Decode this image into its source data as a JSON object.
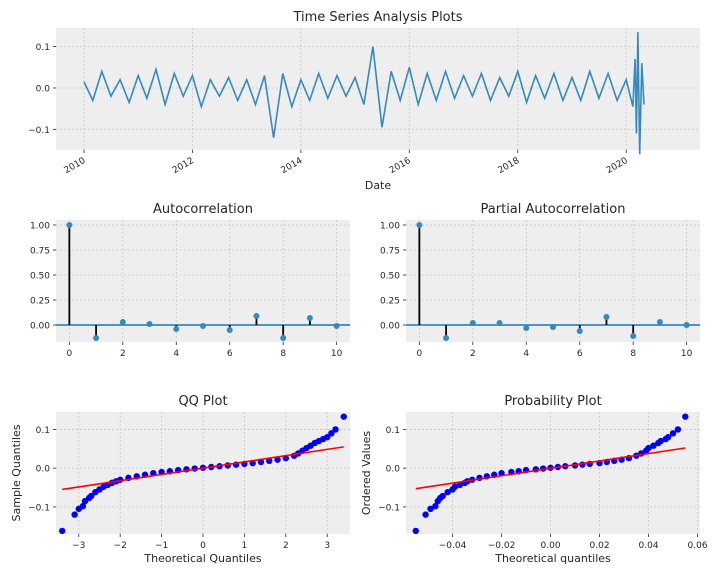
{
  "colors": {
    "panel_bg": "#eeeeee",
    "grid": "#c8c8c8",
    "series": "#348abd",
    "stem": "#000000",
    "qq_points": "#0000ff",
    "ref_line": "#ff0000",
    "text": "#262626"
  },
  "chart_data": [
    {
      "type": "line",
      "title": "Time Series Analysis Plots",
      "xlabel": "Date",
      "ylabel": "",
      "x_range": [
        "2010-01-01",
        "2020-04-30"
      ],
      "ylim": [
        -0.15,
        0.145
      ],
      "x_ticks": [
        "2010",
        "2012",
        "2014",
        "2016",
        "2018",
        "2020"
      ],
      "y_ticks": [
        -0.1,
        0.0,
        0.1
      ],
      "y_tick_labels": [
        "−0.1",
        "0.0",
        "0.1"
      ],
      "grid": true,
      "series": [
        {
          "values_note_free": true,
          "x": [
            "2010-01-01",
            "2010-03-01",
            "2010-05-01",
            "2010-07-01",
            "2010-09-01",
            "2010-11-01",
            "2011-01-01",
            "2011-03-01",
            "2011-05-01",
            "2011-07-01",
            "2011-09-01",
            "2011-11-01",
            "2012-01-01",
            "2012-03-01",
            "2012-05-01",
            "2012-07-01",
            "2012-09-01",
            "2012-11-01",
            "2013-01-01",
            "2013-03-01",
            "2013-05-01",
            "2013-07-01",
            "2013-09-01",
            "2013-11-01",
            "2014-01-01",
            "2014-03-01",
            "2014-05-01",
            "2014-07-01",
            "2014-09-01",
            "2014-11-01",
            "2015-01-01",
            "2015-03-01",
            "2015-05-01",
            "2015-07-01",
            "2015-09-01",
            "2015-11-01",
            "2016-01-01",
            "2016-03-01",
            "2016-05-01",
            "2016-07-01",
            "2016-09-01",
            "2016-11-01",
            "2017-01-01",
            "2017-03-01",
            "2017-05-01",
            "2017-07-01",
            "2017-09-01",
            "2017-11-01",
            "2018-01-01",
            "2018-03-01",
            "2018-05-01",
            "2018-07-01",
            "2018-09-01",
            "2018-11-01",
            "2019-01-01",
            "2019-03-01",
            "2019-05-01",
            "2019-07-01",
            "2019-09-01",
            "2019-11-01",
            "2020-01-01",
            "2020-02-15",
            "2020-03-01",
            "2020-03-10",
            "2020-03-20",
            "2020-04-01",
            "2020-04-15",
            "2020-04-30"
          ],
          "y": [
            0.015,
            -0.03,
            0.04,
            -0.02,
            0.02,
            -0.035,
            0.03,
            -0.025,
            0.045,
            -0.04,
            0.035,
            -0.02,
            0.03,
            -0.045,
            0.02,
            -0.02,
            0.025,
            -0.03,
            0.02,
            -0.04,
            0.03,
            -0.12,
            0.035,
            -0.045,
            0.02,
            -0.03,
            0.035,
            -0.025,
            0.03,
            -0.02,
            0.025,
            -0.04,
            0.1,
            -0.095,
            0.04,
            -0.03,
            0.05,
            -0.04,
            0.035,
            -0.03,
            0.04,
            -0.025,
            0.03,
            -0.02,
            0.035,
            -0.03,
            0.025,
            -0.02,
            0.04,
            -0.035,
            0.03,
            -0.025,
            0.035,
            -0.03,
            0.025,
            -0.03,
            0.04,
            -0.025,
            0.035,
            -0.03,
            0.02,
            -0.045,
            0.07,
            -0.11,
            0.135,
            -0.16,
            0.06,
            -0.04
          ]
        }
      ]
    },
    {
      "type": "scatter",
      "title": "Autocorrelation",
      "xlim": [
        -0.5,
        10.5
      ],
      "ylim": [
        -0.17,
        1.05
      ],
      "x_ticks": [
        0,
        2,
        4,
        6,
        8,
        10
      ],
      "y_ticks": [
        0.0,
        0.25,
        0.5,
        0.75,
        1.0
      ],
      "y_tick_labels": [
        "0.00",
        "0.25",
        "0.50",
        "0.75",
        "1.00"
      ],
      "grid": true,
      "x": [
        0,
        1,
        2,
        3,
        4,
        5,
        6,
        7,
        8,
        9,
        10
      ],
      "y": [
        1.0,
        -0.13,
        0.03,
        0.01,
        -0.04,
        -0.01,
        -0.05,
        0.09,
        -0.13,
        0.07,
        -0.01
      ]
    },
    {
      "type": "scatter",
      "title": "Partial Autocorrelation",
      "xlim": [
        -0.5,
        10.5
      ],
      "ylim": [
        -0.17,
        1.05
      ],
      "x_ticks": [
        0,
        2,
        4,
        6,
        8,
        10
      ],
      "y_ticks": [
        0.0,
        0.25,
        0.5,
        0.75,
        1.0
      ],
      "y_tick_labels": [
        "0.00",
        "0.25",
        "0.50",
        "0.75",
        "1.00"
      ],
      "grid": true,
      "x": [
        0,
        1,
        2,
        3,
        4,
        5,
        6,
        7,
        8,
        9,
        10
      ],
      "y": [
        1.0,
        -0.13,
        0.02,
        0.02,
        -0.03,
        -0.02,
        -0.06,
        0.08,
        -0.11,
        0.03,
        0.0
      ]
    },
    {
      "type": "scatter",
      "title": "QQ Plot",
      "xlabel": "Theoretical Quantiles",
      "ylabel": "Sample Quantiles",
      "xlim": [
        -3.55,
        3.55
      ],
      "ylim": [
        -0.17,
        0.145
      ],
      "x_ticks": [
        -3,
        -2,
        -1,
        0,
        1,
        2,
        3
      ],
      "x_tick_labels": [
        "−3",
        "−2",
        "−1",
        "0",
        "1",
        "2",
        "3"
      ],
      "y_ticks": [
        -0.1,
        0.0,
        0.1
      ],
      "y_tick_labels": [
        "−0.1",
        "0.0",
        "0.1"
      ],
      "grid": true,
      "reference_line": {
        "x": [
          -3.4,
          3.4
        ],
        "y": [
          -0.055,
          0.055
        ]
      },
      "x": [
        -3.4,
        -3.1,
        -3.0,
        -2.9,
        -2.85,
        -2.75,
        -2.7,
        -2.6,
        -2.5,
        -2.4,
        -2.3,
        -2.2,
        -2.1,
        -2.0,
        -1.8,
        -1.6,
        -1.4,
        -1.2,
        -1.0,
        -0.8,
        -0.6,
        -0.4,
        -0.2,
        0.0,
        0.2,
        0.4,
        0.6,
        0.8,
        1.0,
        1.2,
        1.4,
        1.6,
        1.8,
        2.0,
        2.2,
        2.3,
        2.4,
        2.5,
        2.6,
        2.7,
        2.8,
        2.9,
        3.0,
        3.1,
        3.2,
        3.4
      ],
      "y": [
        -0.162,
        -0.12,
        -0.105,
        -0.098,
        -0.085,
        -0.077,
        -0.072,
        -0.062,
        -0.055,
        -0.048,
        -0.043,
        -0.038,
        -0.034,
        -0.03,
        -0.025,
        -0.021,
        -0.017,
        -0.013,
        -0.01,
        -0.008,
        -0.005,
        -0.003,
        -0.001,
        0.001,
        0.003,
        0.005,
        0.007,
        0.009,
        0.011,
        0.013,
        0.016,
        0.019,
        0.022,
        0.026,
        0.032,
        0.038,
        0.045,
        0.052,
        0.058,
        0.065,
        0.07,
        0.075,
        0.08,
        0.09,
        0.1,
        0.133
      ]
    },
    {
      "type": "scatter",
      "title": "Probability Plot",
      "xlabel": "Theoretical quantiles",
      "ylabel": "Ordered Values",
      "xlim": [
        -0.059,
        0.061
      ],
      "ylim": [
        -0.17,
        0.145
      ],
      "x_ticks": [
        -0.04,
        -0.02,
        0.0,
        0.02,
        0.04,
        0.06
      ],
      "x_tick_labels": [
        "−0.04",
        "−0.02",
        "0.00",
        "0.02",
        "0.04",
        "0.06"
      ],
      "y_ticks": [
        -0.1,
        0.0,
        0.1
      ],
      "y_tick_labels": [
        "−0.1",
        "0.0",
        "0.1"
      ],
      "grid": true,
      "reference_line": {
        "x": [
          -0.055,
          0.055
        ],
        "y": [
          -0.053,
          0.052
        ]
      },
      "x": [
        -0.055,
        -0.051,
        -0.049,
        -0.047,
        -0.046,
        -0.045,
        -0.044,
        -0.042,
        -0.04,
        -0.039,
        -0.037,
        -0.035,
        -0.034,
        -0.032,
        -0.029,
        -0.026,
        -0.023,
        -0.02,
        -0.016,
        -0.013,
        -0.01,
        -0.006,
        -0.003,
        0.0,
        0.003,
        0.006,
        0.01,
        0.013,
        0.016,
        0.02,
        0.023,
        0.026,
        0.029,
        0.032,
        0.035,
        0.037,
        0.039,
        0.04,
        0.042,
        0.044,
        0.045,
        0.047,
        0.048,
        0.05,
        0.052,
        0.055
      ],
      "y": [
        -0.162,
        -0.12,
        -0.105,
        -0.098,
        -0.085,
        -0.077,
        -0.072,
        -0.062,
        -0.055,
        -0.048,
        -0.043,
        -0.038,
        -0.034,
        -0.03,
        -0.025,
        -0.021,
        -0.017,
        -0.013,
        -0.01,
        -0.008,
        -0.005,
        -0.003,
        -0.001,
        0.001,
        0.003,
        0.005,
        0.007,
        0.009,
        0.011,
        0.013,
        0.016,
        0.019,
        0.022,
        0.026,
        0.032,
        0.038,
        0.045,
        0.052,
        0.058,
        0.065,
        0.07,
        0.075,
        0.08,
        0.09,
        0.1,
        0.133
      ]
    }
  ]
}
